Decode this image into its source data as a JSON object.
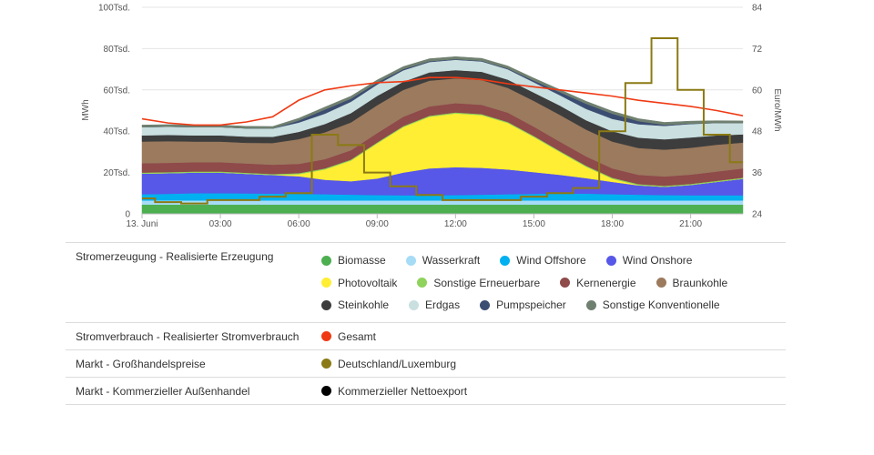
{
  "chart_data": {
    "type": "area",
    "x_categories": [
      "13. Juni",
      "01:00",
      "02:00",
      "03:00",
      "04:00",
      "05:00",
      "06:00",
      "07:00",
      "08:00",
      "09:00",
      "10:00",
      "11:00",
      "12:00",
      "13:00",
      "14:00",
      "15:00",
      "16:00",
      "17:00",
      "18:00",
      "19:00",
      "20:00",
      "21:00",
      "22:00",
      "23:00"
    ],
    "x_tick_labels": [
      "13. Juni",
      "03:00",
      "06:00",
      "09:00",
      "12:00",
      "15:00",
      "18:00",
      "21:00"
    ],
    "x_tick_hours": [
      0,
      3,
      6,
      9,
      12,
      15,
      18,
      21
    ],
    "y_left": {
      "label": "MWh",
      "ticks": [
        "0",
        "20Tsd.",
        "40Tsd.",
        "60Tsd.",
        "80Tsd.",
        "100Tsd."
      ],
      "range": [
        0,
        100000
      ]
    },
    "y_right": {
      "label": "Euro/MWh",
      "ticks": [
        "24",
        "36",
        "48",
        "60",
        "72",
        "84"
      ],
      "range": [
        24,
        84
      ]
    },
    "stack_series": [
      {
        "name": "Biomasse",
        "color": "#4caf50",
        "values": [
          4500,
          4500,
          4500,
          4500,
          4500,
          4500,
          4500,
          4500,
          4500,
          4500,
          4500,
          4500,
          4500,
          4500,
          4500,
          4500,
          4500,
          4500,
          4500,
          4500,
          4500,
          4500,
          4500,
          4500
        ]
      },
      {
        "name": "Wasserkraft",
        "color": "#a6dcf5",
        "values": [
          2000,
          2000,
          2000,
          2000,
          2000,
          2000,
          2000,
          2000,
          2000,
          2000,
          2000,
          2000,
          2000,
          2000,
          2000,
          2000,
          2000,
          2000,
          2000,
          2000,
          2000,
          2000,
          2000,
          2000
        ]
      },
      {
        "name": "Wind Offshore",
        "color": "#00b0f0",
        "values": [
          3000,
          3200,
          3500,
          3500,
          3400,
          3300,
          3200,
          3000,
          2800,
          2600,
          2500,
          2500,
          2600,
          2800,
          3000,
          3200,
          3400,
          3300,
          3000,
          2800,
          2600,
          2500,
          2500,
          2500
        ]
      },
      {
        "name": "Wind Onshore",
        "color": "#5757e8",
        "values": [
          10000,
          10000,
          10000,
          10000,
          9500,
          9000,
          8500,
          7000,
          6500,
          8000,
          11000,
          13000,
          13500,
          13000,
          12000,
          10500,
          9000,
          7500,
          6000,
          4500,
          4000,
          5000,
          6500,
          8000
        ]
      },
      {
        "name": "Photovoltaik",
        "color": "#ffee33",
        "values": [
          0,
          0,
          0,
          0,
          0,
          0,
          1000,
          5000,
          10000,
          17000,
          22000,
          25000,
          26000,
          25500,
          22500,
          17000,
          11000,
          5500,
          1500,
          100,
          0,
          0,
          0,
          0
        ]
      },
      {
        "name": "Sonstige Erneuerbare",
        "color": "#8fd35c",
        "values": [
          500,
          500,
          500,
          500,
          500,
          500,
          500,
          500,
          500,
          500,
          500,
          500,
          500,
          500,
          500,
          500,
          500,
          500,
          500,
          500,
          500,
          500,
          500,
          500
        ]
      },
      {
        "name": "Kernenergie",
        "color": "#8f4a4a",
        "values": [
          4500,
          4500,
          4500,
          4500,
          4500,
          4500,
          4500,
          4500,
          4500,
          4500,
          4500,
          4500,
          4500,
          4500,
          4500,
          4500,
          4500,
          4500,
          4500,
          4500,
          4500,
          4500,
          4500,
          4500
        ]
      },
      {
        "name": "Braunkohle",
        "color": "#9b7a5e",
        "values": [
          10500,
          10500,
          10000,
          10000,
          10000,
          10500,
          12000,
          13000,
          13500,
          13500,
          13000,
          12500,
          12000,
          12000,
          12000,
          12500,
          13000,
          13000,
          13000,
          13000,
          13000,
          13000,
          13000,
          12500
        ]
      },
      {
        "name": "Steinkohle",
        "color": "#3d3d3d",
        "values": [
          3000,
          3000,
          3000,
          3000,
          3000,
          3000,
          3500,
          4000,
          4500,
          4500,
          4000,
          4000,
          4000,
          4000,
          4000,
          4000,
          4500,
          4500,
          5000,
          5000,
          5000,
          5000,
          4500,
          4000
        ]
      },
      {
        "name": "Erdgas",
        "color": "#c9dfe0",
        "values": [
          4000,
          4000,
          4000,
          4000,
          4000,
          4000,
          4500,
          5000,
          5500,
          5500,
          5500,
          5000,
          5000,
          5000,
          5000,
          5000,
          5000,
          5500,
          6000,
          6500,
          6500,
          6500,
          6000,
          5500
        ]
      },
      {
        "name": "Pumpspeicher",
        "color": "#3c4d72",
        "values": [
          0,
          0,
          0,
          0,
          0,
          0,
          1000,
          2000,
          1500,
          1000,
          600,
          400,
          300,
          300,
          400,
          800,
          1500,
          2500,
          2500,
          1500,
          500,
          200,
          0,
          0
        ]
      },
      {
        "name": "Sonstige Konventionelle",
        "color": "#6f8070",
        "values": [
          1000,
          1000,
          1000,
          1000,
          1000,
          1000,
          1100,
          1200,
          1200,
          1200,
          1200,
          1200,
          1200,
          1200,
          1200,
          1200,
          1200,
          1200,
          1200,
          1200,
          1200,
          1200,
          1100,
          1000
        ]
      }
    ],
    "line_series": [
      {
        "name": "Gesamt",
        "color": "#ef3a14",
        "axis": "left",
        "values": [
          46000,
          44000,
          43000,
          43000,
          44500,
          47000,
          55000,
          60000,
          62000,
          63500,
          64000,
          66000,
          66000,
          65000,
          63000,
          61500,
          60000,
          58500,
          57000,
          55000,
          53500,
          52000,
          50000,
          47500
        ]
      },
      {
        "name": "Deutschland/Luxemburg",
        "color": "#8b7a14",
        "axis": "right",
        "step": true,
        "values": [
          28.5,
          27.4,
          27.0,
          28.0,
          28.0,
          29.0,
          30.0,
          47.0,
          44.0,
          36.0,
          32.0,
          29.5,
          28.0,
          28.0,
          28.0,
          29.0,
          30.0,
          31.5,
          48.0,
          62.0,
          75.0,
          60.0,
          47.0,
          39.0
        ]
      }
    ]
  },
  "legend": {
    "groups": [
      {
        "title": "Stromerzeugung - Realisierte Erzeugung",
        "items": [
          {
            "label": "Biomasse",
            "color": "#4caf50"
          },
          {
            "label": "Wasserkraft",
            "color": "#a6dcf5"
          },
          {
            "label": "Wind Offshore",
            "color": "#00b0f0"
          },
          {
            "label": "Wind Onshore",
            "color": "#5757e8"
          },
          {
            "label": "Photovoltaik",
            "color": "#ffee33"
          },
          {
            "label": "Sonstige Erneuerbare",
            "color": "#8fd35c"
          },
          {
            "label": "Kernenergie",
            "color": "#8f4a4a"
          },
          {
            "label": "Braunkohle",
            "color": "#9b7a5e"
          },
          {
            "label": "Steinkohle",
            "color": "#3d3d3d"
          },
          {
            "label": "Erdgas",
            "color": "#c9dfe0"
          },
          {
            "label": "Pumpspeicher",
            "color": "#3c4d72"
          },
          {
            "label": "Sonstige Konventionelle",
            "color": "#6f8070"
          }
        ]
      },
      {
        "title": "Stromverbrauch - Realisierter Stromverbrauch",
        "items": [
          {
            "label": "Gesamt",
            "color": "#ef3a14"
          }
        ]
      },
      {
        "title": "Markt - Großhandelspreise",
        "items": [
          {
            "label": "Deutschland/Luxemburg",
            "color": "#8b7a14"
          }
        ]
      },
      {
        "title": "Markt - Kommerzieller Außenhandel",
        "items": [
          {
            "label": "Kommerzieller Nettoexport",
            "color": "#000000"
          }
        ]
      }
    ]
  }
}
